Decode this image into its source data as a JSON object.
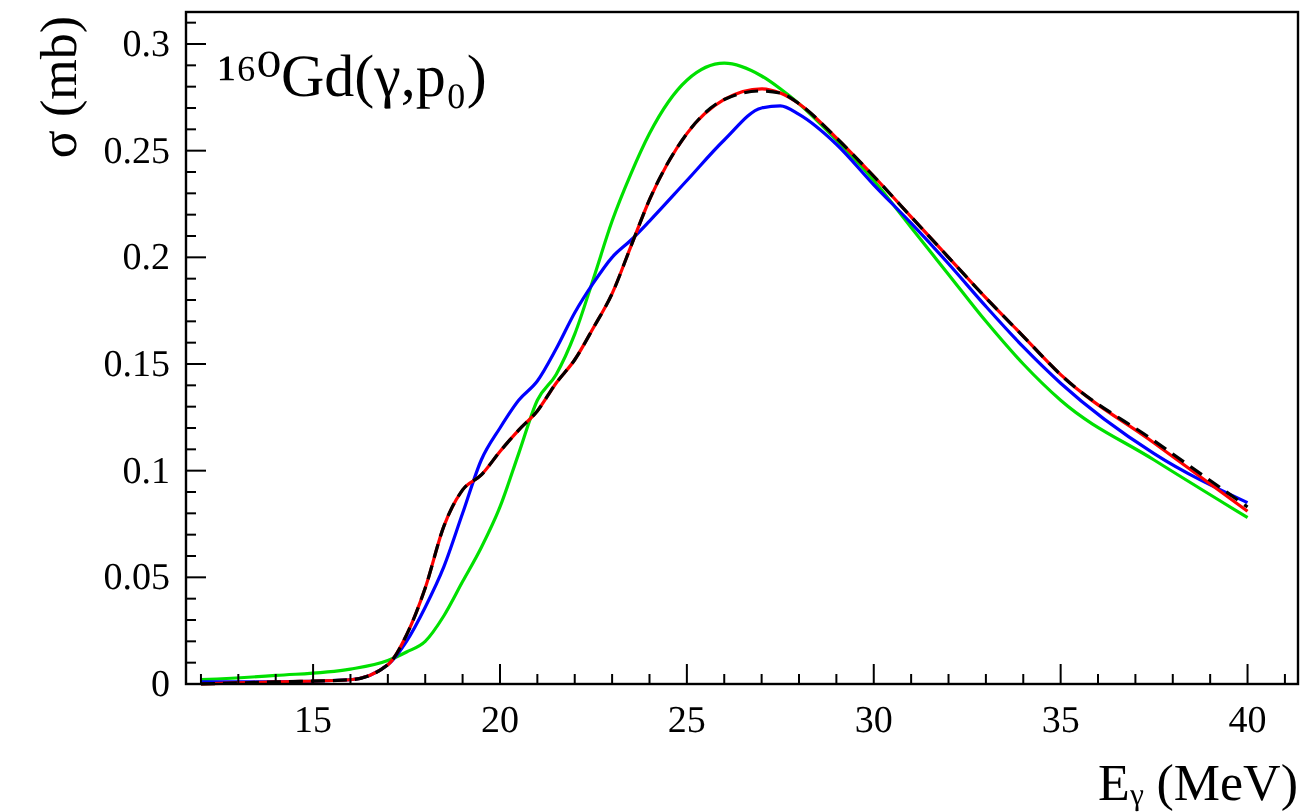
{
  "chart_data": {
    "type": "line",
    "xlabel": "Eᵧ (MeV)",
    "ylabel": "σ (mb)",
    "annotations": [
      "¹⁶⁰Gd(γ,p₀)"
    ],
    "xlim": [
      11.6,
      41.35
    ],
    "ylim": [
      0,
      0.315
    ],
    "xticks": [
      {
        "value": 12,
        "label": null
      },
      {
        "value": 13,
        "label": null
      },
      {
        "value": 14,
        "label": null
      },
      15,
      {
        "value": 16,
        "label": null
      },
      {
        "value": 17,
        "label": null
      },
      {
        "value": 18,
        "label": null
      },
      {
        "value": 19,
        "label": null
      },
      20,
      {
        "value": 21,
        "label": null
      },
      {
        "value": 22,
        "label": null
      },
      {
        "value": 23,
        "label": null
      },
      {
        "value": 24,
        "label": null
      },
      25,
      {
        "value": 26,
        "label": null
      },
      {
        "value": 27,
        "label": null
      },
      {
        "value": 28,
        "label": null
      },
      {
        "value": 29,
        "label": null
      },
      30,
      {
        "value": 31,
        "label": null
      },
      {
        "value": 32,
        "label": null
      },
      {
        "value": 33,
        "label": null
      },
      {
        "value": 34,
        "label": null
      },
      35,
      {
        "value": 36,
        "label": null
      },
      {
        "value": 37,
        "label": null
      },
      {
        "value": 38,
        "label": null
      },
      {
        "value": 39,
        "label": null
      },
      40,
      {
        "value": 41,
        "label": null
      }
    ],
    "yticks": [
      0,
      {
        "value": 0.01,
        "label": null
      },
      {
        "value": 0.02,
        "label": null
      },
      {
        "value": 0.03,
        "label": null
      },
      {
        "value": 0.04,
        "label": null
      },
      0.05,
      {
        "value": 0.06,
        "label": null
      },
      {
        "value": 0.07,
        "label": null
      },
      {
        "value": 0.08,
        "label": null
      },
      {
        "value": 0.09,
        "label": null
      },
      0.1,
      {
        "value": 0.11,
        "label": null
      },
      {
        "value": 0.12,
        "label": null
      },
      {
        "value": 0.13,
        "label": null
      },
      {
        "value": 0.14,
        "label": null
      },
      0.15,
      {
        "value": 0.16,
        "label": null
      },
      {
        "value": 0.17,
        "label": null
      },
      {
        "value": 0.18,
        "label": null
      },
      {
        "value": 0.19,
        "label": null
      },
      0.2,
      {
        "value": 0.21,
        "label": null
      },
      {
        "value": 0.22,
        "label": null
      },
      {
        "value": 0.23,
        "label": null
      },
      {
        "value": 0.24,
        "label": null
      },
      0.25,
      {
        "value": 0.26,
        "label": null
      },
      {
        "value": 0.27,
        "label": null
      },
      {
        "value": 0.28,
        "label": null
      },
      {
        "value": 0.29,
        "label": null
      },
      0.3,
      {
        "value": 0.31,
        "label": null
      }
    ],
    "grid": false,
    "marker": "none",
    "x": [
      12,
      14,
      16,
      17,
      17.5,
      18,
      18.5,
      19,
      19.5,
      20,
      20.5,
      21,
      21.5,
      22,
      22.5,
      23,
      23.5,
      24,
      25,
      26,
      27,
      27.5,
      28,
      29,
      30,
      31,
      32,
      33,
      34,
      35,
      37.5,
      40
    ],
    "series": [
      {
        "color": "#00e000",
        "line_style": "solid",
        "values": [
          0.002,
          0.004,
          0.007,
          0.011,
          0.015,
          0.02,
          0.032,
          0.048,
          0.064,
          0.083,
          0.108,
          0.133,
          0.145,
          0.164,
          0.19,
          0.217,
          0.239,
          0.258,
          0.283,
          0.291,
          0.285,
          0.279,
          0.272,
          0.255,
          0.236,
          0.214,
          0.192,
          0.17,
          0.15,
          0.133,
          0.105,
          0.078
        ]
      },
      {
        "color": "#0000ff",
        "line_style": "solid",
        "values": [
          0.001,
          0.001,
          0.002,
          0.009,
          0.02,
          0.036,
          0.055,
          0.08,
          0.105,
          0.12,
          0.133,
          0.142,
          0.157,
          0.174,
          0.188,
          0.2,
          0.208,
          0.217,
          0.236,
          0.255,
          0.27,
          0.271,
          0.267,
          0.253,
          0.234,
          0.216,
          0.197,
          0.177,
          0.158,
          0.141,
          0.108,
          0.085
        ]
      },
      {
        "color": "#ff0000",
        "line_style": "solid",
        "values": [
          0,
          0.001,
          0.002,
          0.009,
          0.023,
          0.045,
          0.074,
          0.091,
          0.098,
          0.109,
          0.119,
          0.128,
          0.141,
          0.152,
          0.167,
          0.183,
          0.205,
          0.227,
          0.258,
          0.274,
          0.279,
          0.277,
          0.272,
          0.256,
          0.238,
          0.219,
          0.2,
          0.181,
          0.163,
          0.145,
          0.113,
          0.081
        ]
      },
      {
        "color": "#000000",
        "line_style": "dashed",
        "values": [
          0,
          0.001,
          0.002,
          0.009,
          0.023,
          0.045,
          0.074,
          0.091,
          0.098,
          0.109,
          0.119,
          0.128,
          0.141,
          0.152,
          0.167,
          0.183,
          0.205,
          0.227,
          0.258,
          0.274,
          0.278,
          0.277,
          0.272,
          0.256,
          0.238,
          0.219,
          0.2,
          0.181,
          0.163,
          0.145,
          0.114,
          0.083
        ]
      }
    ]
  }
}
